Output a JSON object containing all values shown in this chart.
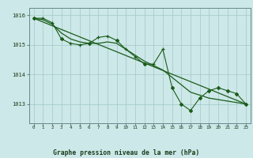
{
  "title": "Graphe pression niveau de la mer (hPa)",
  "bg_color": "#cde8e8",
  "line_color": "#1a5c1a",
  "grid_color": "#a0c8c8",
  "spine_color": "#668888",
  "xlim": [
    -0.5,
    23.5
  ],
  "ylim": [
    1012.35,
    1016.25
  ],
  "yticks": [
    1013,
    1014,
    1015,
    1016
  ],
  "xticks": [
    0,
    1,
    2,
    3,
    4,
    5,
    6,
    7,
    8,
    9,
    10,
    11,
    12,
    13,
    14,
    15,
    16,
    17,
    18,
    19,
    20,
    21,
    22,
    23
  ],
  "series_hourly": {
    "x": [
      0,
      1,
      2,
      3,
      4,
      5,
      6,
      7,
      8,
      9,
      10,
      11,
      12,
      13,
      14,
      15,
      16,
      17,
      18,
      19,
      20,
      21,
      22,
      23
    ],
    "y": [
      1015.9,
      1015.9,
      1015.75,
      1015.2,
      1015.05,
      1015.0,
      1015.05,
      1015.25,
      1015.3,
      1015.15,
      1014.85,
      1014.6,
      1014.35,
      1014.35,
      1014.85,
      1013.55,
      1013.0,
      1012.78,
      1013.2,
      1013.45,
      1013.55,
      1013.45,
      1013.35,
      1013.0
    ]
  },
  "series_3h": {
    "x": [
      0,
      3,
      6,
      9,
      12,
      15,
      16,
      17,
      18,
      19,
      20,
      21,
      22,
      23
    ],
    "y": [
      1015.9,
      1015.2,
      1015.05,
      1015.15,
      1014.35,
      1013.55,
      1013.0,
      1012.78,
      1013.2,
      1013.45,
      1013.55,
      1013.45,
      1013.35,
      1013.0
    ]
  },
  "series_trend": {
    "x": [
      0,
      23
    ],
    "y": [
      1015.9,
      1013.0
    ]
  },
  "series_smooth": {
    "x": [
      0,
      1,
      2,
      3,
      4,
      5,
      6,
      7,
      8,
      9,
      10,
      11,
      12,
      13,
      14,
      15,
      16,
      17,
      18,
      19,
      20,
      21,
      22,
      23
    ],
    "y": [
      1015.9,
      1015.85,
      1015.7,
      1015.4,
      1015.2,
      1015.1,
      1015.05,
      1015.05,
      1015.1,
      1015.05,
      1014.85,
      1014.65,
      1014.45,
      1014.3,
      1014.15,
      1013.9,
      1013.65,
      1013.4,
      1013.3,
      1013.2,
      1013.15,
      1013.1,
      1013.05,
      1013.0
    ]
  }
}
